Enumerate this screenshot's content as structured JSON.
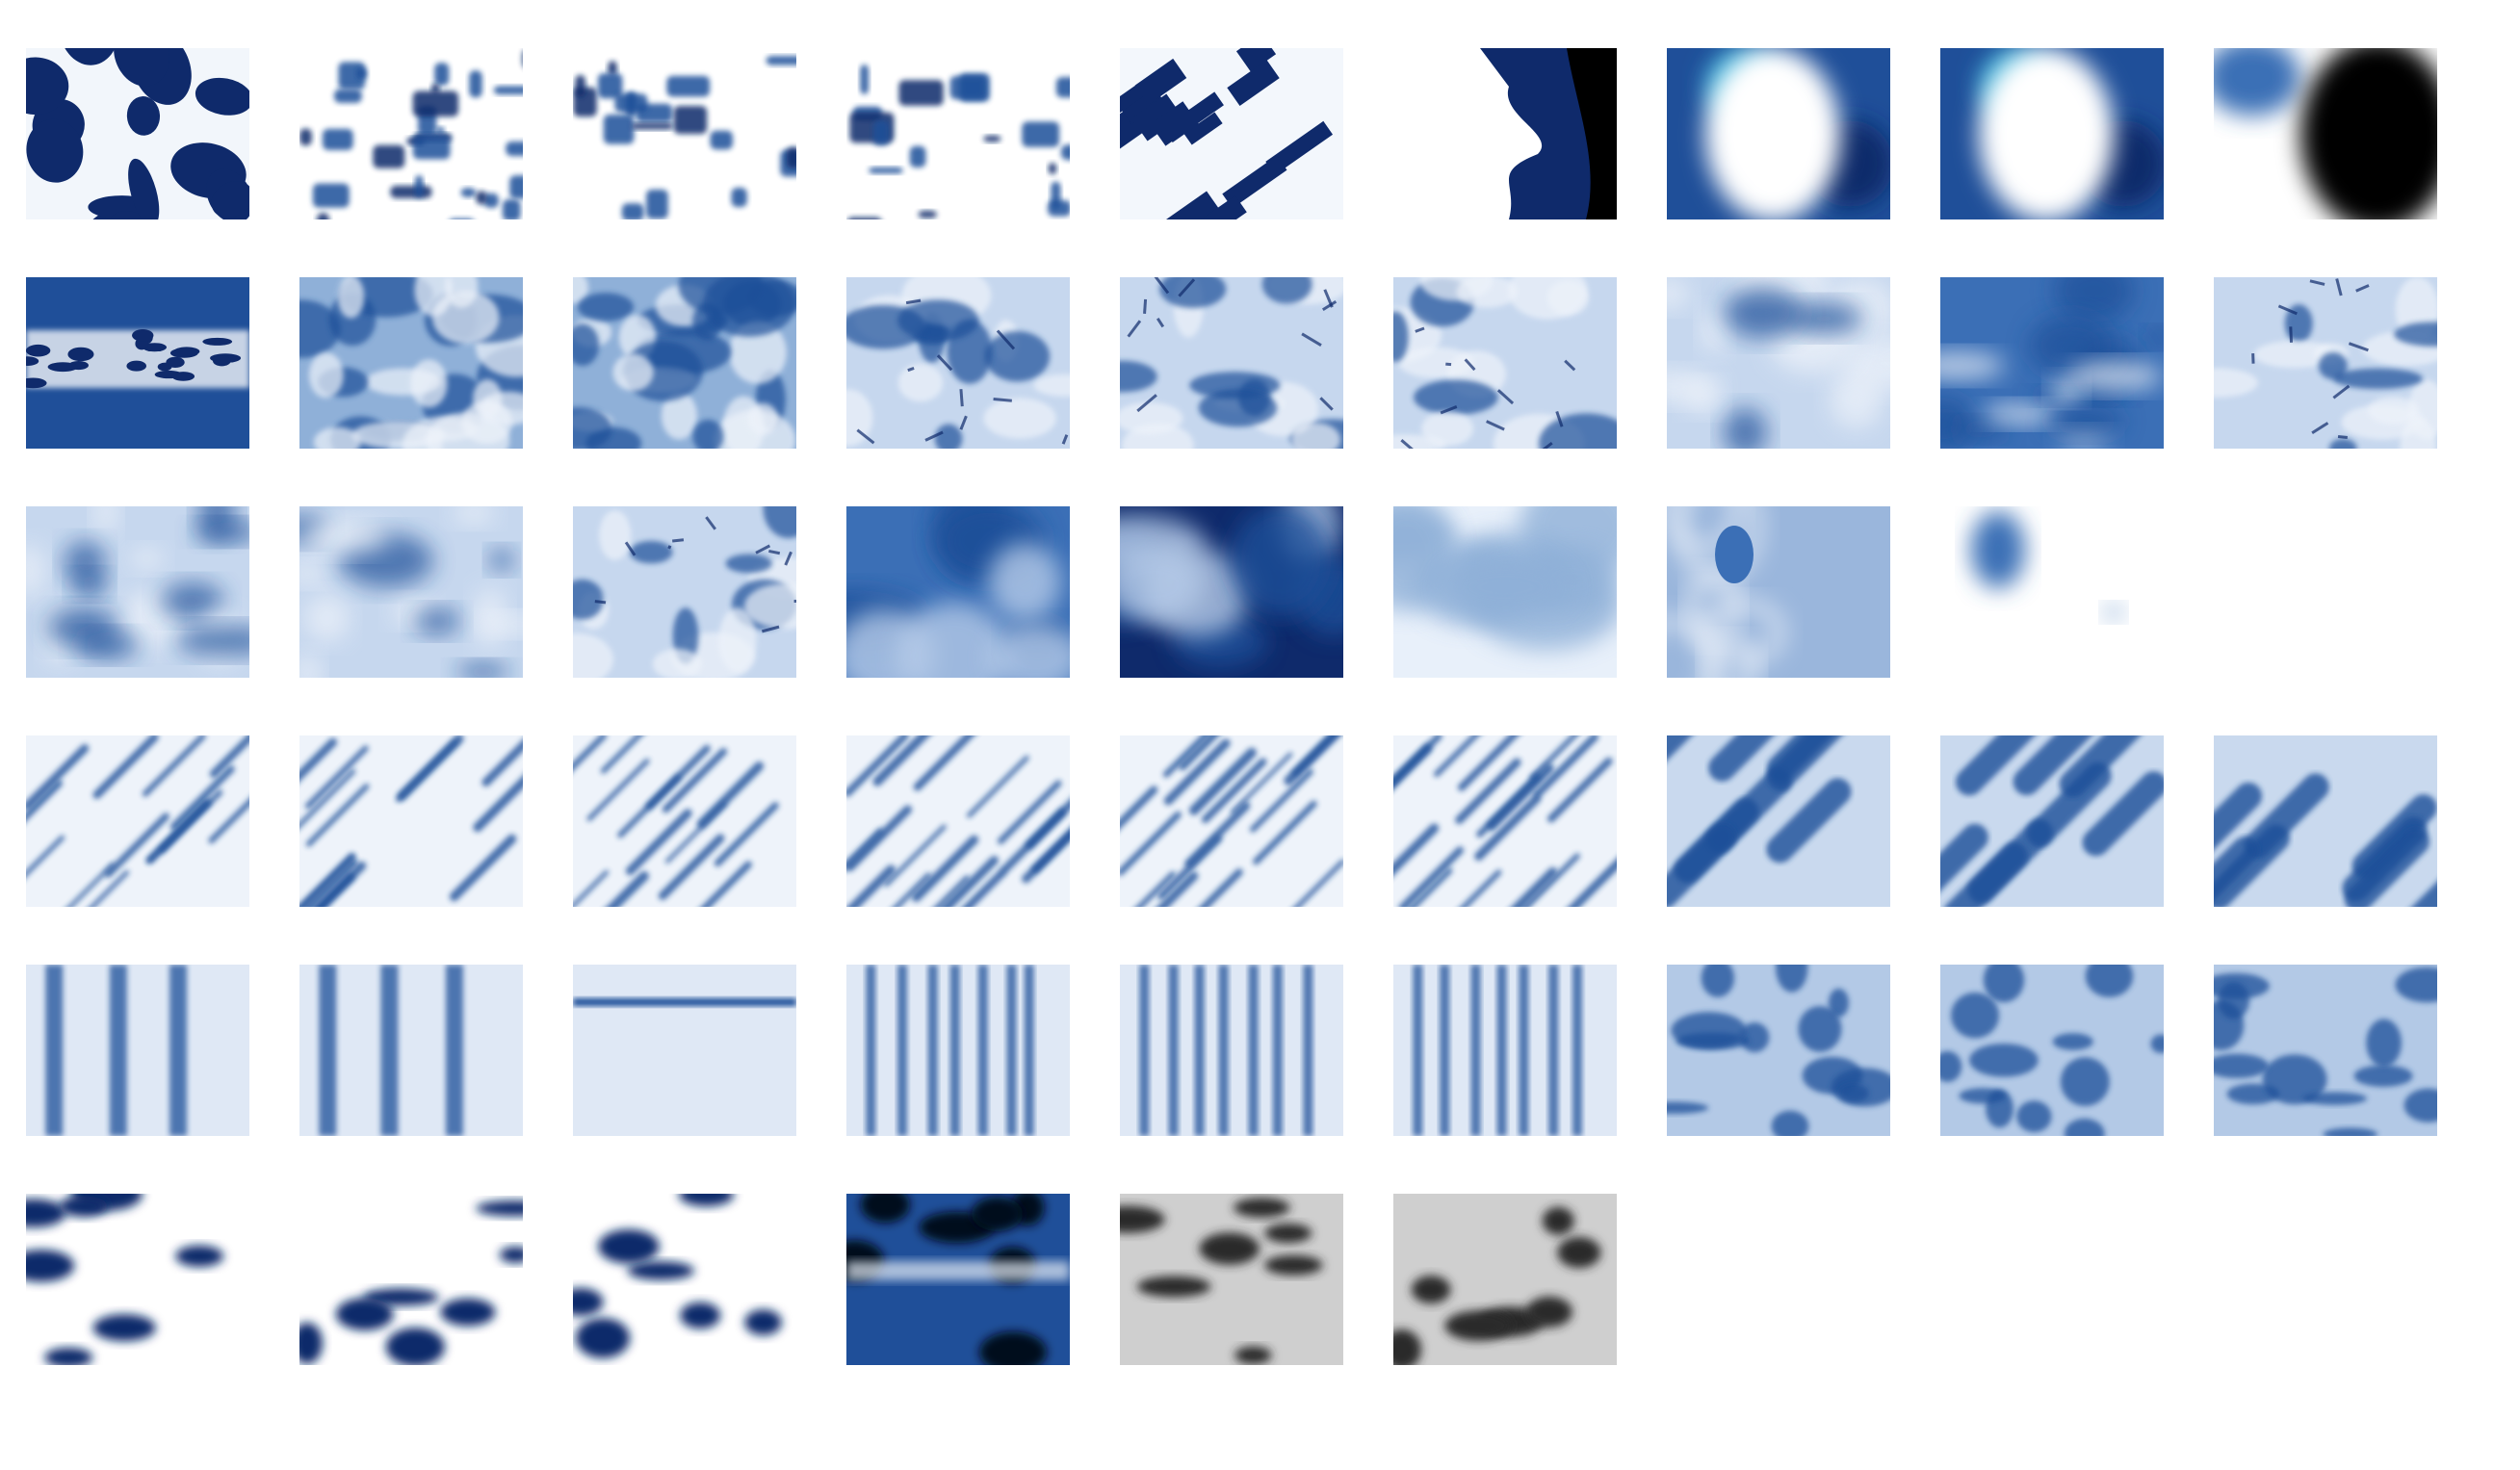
{
  "page": {
    "background": "#ffffff"
  },
  "colors": {
    "indigo_dark": "#0f2a6b",
    "indigo": "#1f4f99",
    "indigo_mid": "#3b6fb6",
    "indigo_light": "#8fb0d8",
    "pale": "#e6eef8",
    "black": "#000000",
    "cyan": "#3fb3d9",
    "grey": "#cfcfcf",
    "grey_dark": "#2b2b2b"
  },
  "rows": [
    [
      "blotch-white",
      "grid-dark",
      "grid-light",
      "grid-light",
      "diagonal-dark",
      "black-edge",
      "white-blob-cyan",
      "white-blob-cyan",
      "black-blob"
    ],
    [
      "band",
      "dense",
      "dense",
      "burst",
      "burst",
      "burst",
      "soft",
      "dark-soft",
      "burst"
    ],
    [
      "soft",
      "soft",
      "burst",
      "smooth",
      "smooth-dark",
      "smooth-light",
      "ripple",
      "drop"
    ],
    [
      "crinkle",
      "crinkle",
      "crinkle",
      "diag-crinkle",
      "diag-crinkle",
      "diag-crinkle",
      "diag-bold",
      "diag-bold",
      "diag-bold"
    ],
    [
      "vertical",
      "vertical",
      "horizontal",
      "stripes",
      "stripes",
      "stripes",
      "speckle",
      "speckle",
      "speckle"
    ],
    [
      "spots-white",
      "spots-white",
      "spots-white",
      "spots-dark",
      "grey-spots",
      "grey-spots"
    ]
  ]
}
